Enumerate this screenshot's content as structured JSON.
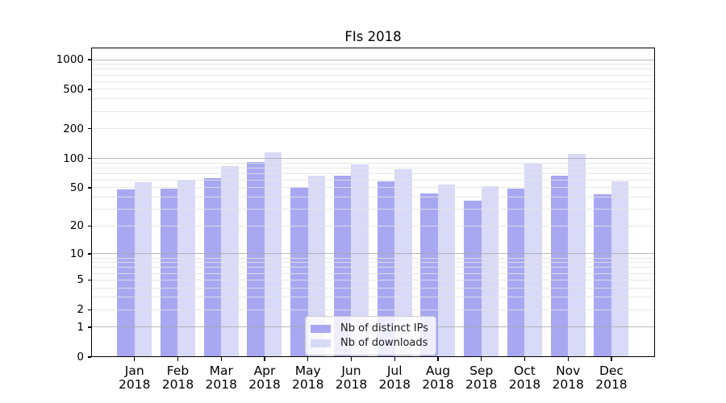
{
  "chart_data": {
    "type": "bar",
    "title": "FIs 2018",
    "categories": [
      "Jan",
      "Feb",
      "Mar",
      "Apr",
      "May",
      "Jun",
      "Jul",
      "Aug",
      "Sep",
      "Oct",
      "Nov",
      "Dec"
    ],
    "year_label": "2018",
    "series": [
      {
        "name": "Nb of distinct IPs",
        "color": "#a8a8f2",
        "values": [
          48,
          49,
          63,
          92,
          51,
          66,
          58,
          44,
          37,
          49,
          67,
          43
        ]
      },
      {
        "name": "Nb of downloads",
        "color": "#d9d9f8",
        "values": [
          57,
          61,
          84,
          115,
          67,
          87,
          78,
          54,
          52,
          88,
          112,
          58
        ]
      }
    ],
    "xlabel": "",
    "ylabel": "",
    "y_scale": "symlog",
    "y_ticks": [
      0,
      1,
      2,
      5,
      10,
      20,
      50,
      100,
      200,
      500,
      1000
    ],
    "ylim": [
      0,
      1300
    ],
    "grid": true,
    "legend_position": "lower center"
  },
  "colors": {
    "major_grid": "#a6a6a6",
    "minor_grid": "#e3e3e3",
    "spine": "#000000",
    "text": "#000000",
    "legend_border": "#cccccc"
  }
}
